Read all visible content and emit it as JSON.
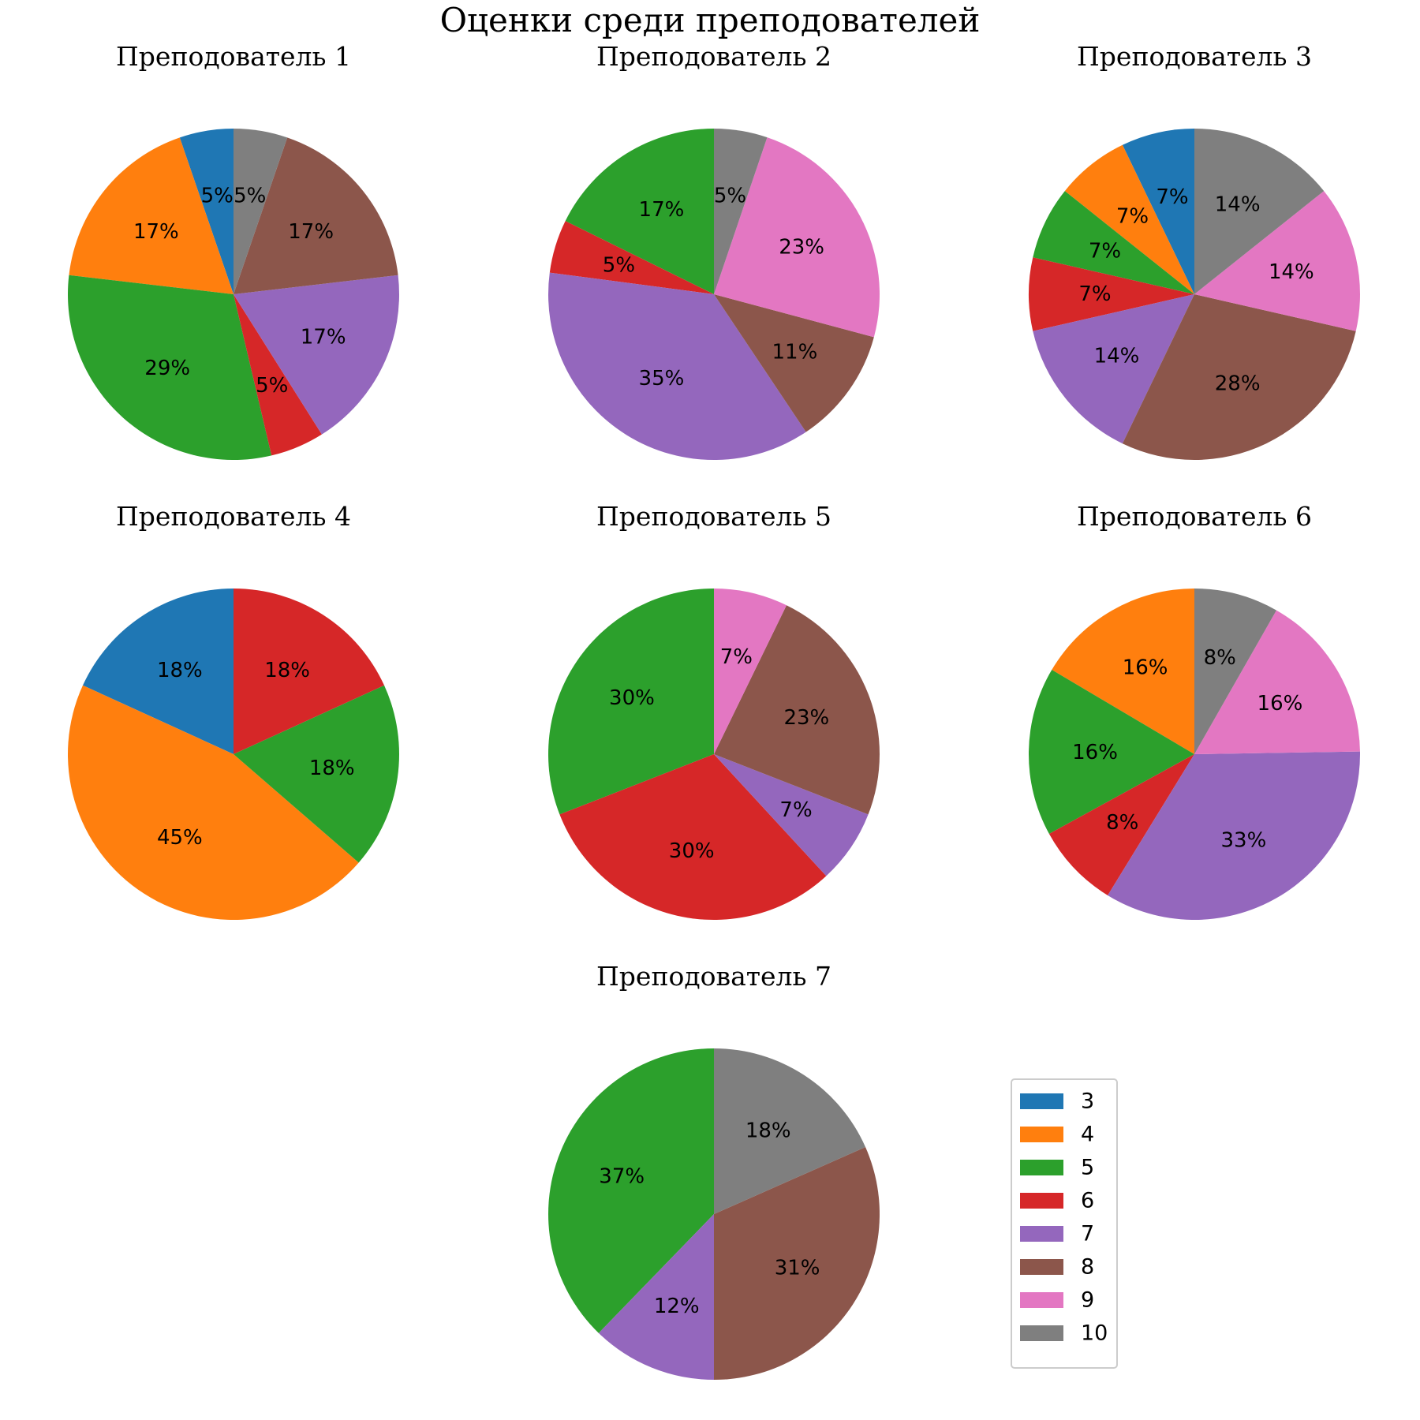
{
  "chart_data": {
    "type": "pie",
    "title": "Оценки среди преподователей",
    "legend": {
      "placement": "bottom-right",
      "entries": [
        "3",
        "4",
        "5",
        "6",
        "7",
        "8",
        "9",
        "10"
      ]
    },
    "colors": {
      "3": "#1f77b4",
      "4": "#ff7f0e",
      "5": "#2ca02c",
      "6": "#d62728",
      "7": "#9467bd",
      "8": "#8c564b",
      "9": "#e377c2",
      "10": "#7f7f7f"
    },
    "pies": [
      {
        "title": "Преподователь 1",
        "slices": [
          {
            "grade": "3",
            "value": 5.0,
            "label": "5%"
          },
          {
            "grade": "4",
            "value": 17.0,
            "label": "17%"
          },
          {
            "grade": "5",
            "value": 29.0,
            "label": "29%"
          },
          {
            "grade": "6",
            "value": 5.0,
            "label": "5%"
          },
          {
            "grade": "7",
            "value": 17.0,
            "label": "17%"
          },
          {
            "grade": "8",
            "value": 17.0,
            "label": "17%"
          },
          {
            "grade": "10",
            "value": 5.0,
            "label": "5%"
          }
        ]
      },
      {
        "title": "Преподователь 2",
        "slices": [
          {
            "grade": "5",
            "value": 17.0,
            "label": "17%"
          },
          {
            "grade": "6",
            "value": 5.0,
            "label": "5%"
          },
          {
            "grade": "7",
            "value": 35.0,
            "label": "35%"
          },
          {
            "grade": "8",
            "value": 11.0,
            "label": "11%"
          },
          {
            "grade": "9",
            "value": 23.0,
            "label": "23%"
          },
          {
            "grade": "10",
            "value": 5.0,
            "label": "5%"
          }
        ]
      },
      {
        "title": "Преподователь 3",
        "slices": [
          {
            "grade": "3",
            "value": 7.0,
            "label": "7%"
          },
          {
            "grade": "4",
            "value": 7.0,
            "label": "7%"
          },
          {
            "grade": "5",
            "value": 7.0,
            "label": "7%"
          },
          {
            "grade": "6",
            "value": 7.0,
            "label": "7%"
          },
          {
            "grade": "7",
            "value": 14.0,
            "label": "14%"
          },
          {
            "grade": "8",
            "value": 28.0,
            "label": "28%"
          },
          {
            "grade": "9",
            "value": 14.0,
            "label": "14%"
          },
          {
            "grade": "10",
            "value": 14.0,
            "label": "14%"
          }
        ]
      },
      {
        "title": "Преподователь 4",
        "slices": [
          {
            "grade": "3",
            "value": 18.0,
            "label": "18%"
          },
          {
            "grade": "4",
            "value": 45.0,
            "label": "45%"
          },
          {
            "grade": "5",
            "value": 18.0,
            "label": "18%"
          },
          {
            "grade": "6",
            "value": 18.0,
            "label": "18%"
          }
        ]
      },
      {
        "title": "Преподователь 5",
        "slices": [
          {
            "grade": "5",
            "value": 30.0,
            "label": "30%"
          },
          {
            "grade": "6",
            "value": 30.0,
            "label": "30%"
          },
          {
            "grade": "7",
            "value": 7.0,
            "label": "7%"
          },
          {
            "grade": "8",
            "value": 23.0,
            "label": "23%"
          },
          {
            "grade": "9",
            "value": 7.0,
            "label": "7%"
          }
        ]
      },
      {
        "title": "Преподователь 6",
        "slices": [
          {
            "grade": "4",
            "value": 16.0,
            "label": "16%"
          },
          {
            "grade": "5",
            "value": 16.0,
            "label": "16%"
          },
          {
            "grade": "6",
            "value": 8.0,
            "label": "8%"
          },
          {
            "grade": "7",
            "value": 33.0,
            "label": "33%"
          },
          {
            "grade": "9",
            "value": 16.0,
            "label": "16%"
          },
          {
            "grade": "10",
            "value": 8.0,
            "label": "8%"
          }
        ]
      },
      {
        "title": "Преподователь 7",
        "slices": [
          {
            "grade": "5",
            "value": 37.0,
            "label": "37%"
          },
          {
            "grade": "7",
            "value": 12.0,
            "label": "12%"
          },
          {
            "grade": "8",
            "value": 31.0,
            "label": "31%"
          },
          {
            "grade": "10",
            "value": 18.0,
            "label": "18%"
          }
        ]
      }
    ]
  }
}
